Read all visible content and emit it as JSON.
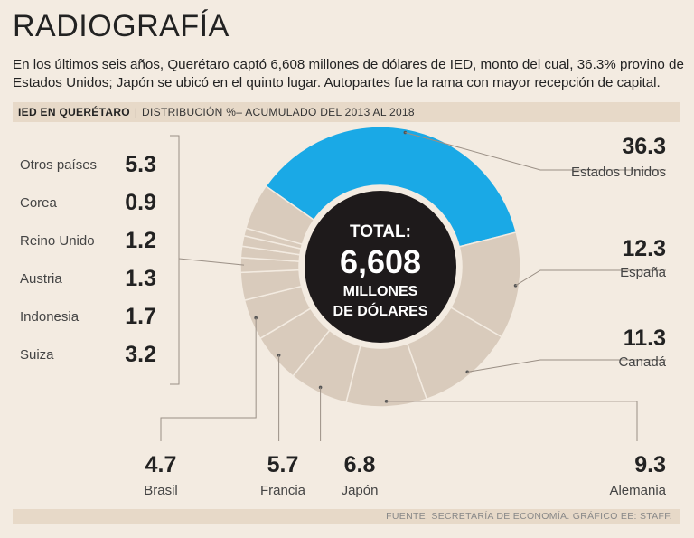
{
  "header": {
    "title": "RADIOGRAFÍA",
    "subtitle": "En los últimos seis años, Querétaro captó 6,608 millones de dólares de IED, monto del cual, 36.3% provino de Estados Unidos; Japón se ubicó en el quinto lugar. Autopartes fue la rama con mayor recepción de capital."
  },
  "section_bar": {
    "label_bold": "IED EN QUERÉTARO",
    "separator": "|",
    "label": "DISTRIBUCIÓN %– ACUMULADO DEL 2013 AL 2018"
  },
  "footer": {
    "source": "FUENTE: SECRETARÍA DE ECONOMÍA. GRÁFICO EE: STAFF."
  },
  "colors": {
    "highlight": "#1aa9e6",
    "slice": "#d9cbbc",
    "center": "#1e1a1b",
    "background": "#f3ebe1",
    "band": "#e7d9c8"
  },
  "chart_data": {
    "type": "pie",
    "title": "IED EN QUERÉTARO",
    "center_label": {
      "line1": "TOTAL:",
      "line2": "6,608",
      "line3": "MILLONES",
      "line4": "DE DÓLARES"
    },
    "unit": "%",
    "slices": [
      {
        "label": "Estados Unidos",
        "value": 36.3,
        "highlight": true
      },
      {
        "label": "España",
        "value": 12.3
      },
      {
        "label": "Canadá",
        "value": 11.3
      },
      {
        "label": "Alemania",
        "value": 9.3
      },
      {
        "label": "Japón",
        "value": 6.8
      },
      {
        "label": "Francia",
        "value": 5.7
      },
      {
        "label": "Brasil",
        "value": 4.7
      },
      {
        "label": "Suiza",
        "value": 3.2
      },
      {
        "label": "Indonesia",
        "value": 1.7
      },
      {
        "label": "Austria",
        "value": 1.3
      },
      {
        "label": "Reino Unido",
        "value": 1.2
      },
      {
        "label": "Corea",
        "value": 0.9
      },
      {
        "label": "Otros países",
        "value": 5.3
      }
    ]
  }
}
